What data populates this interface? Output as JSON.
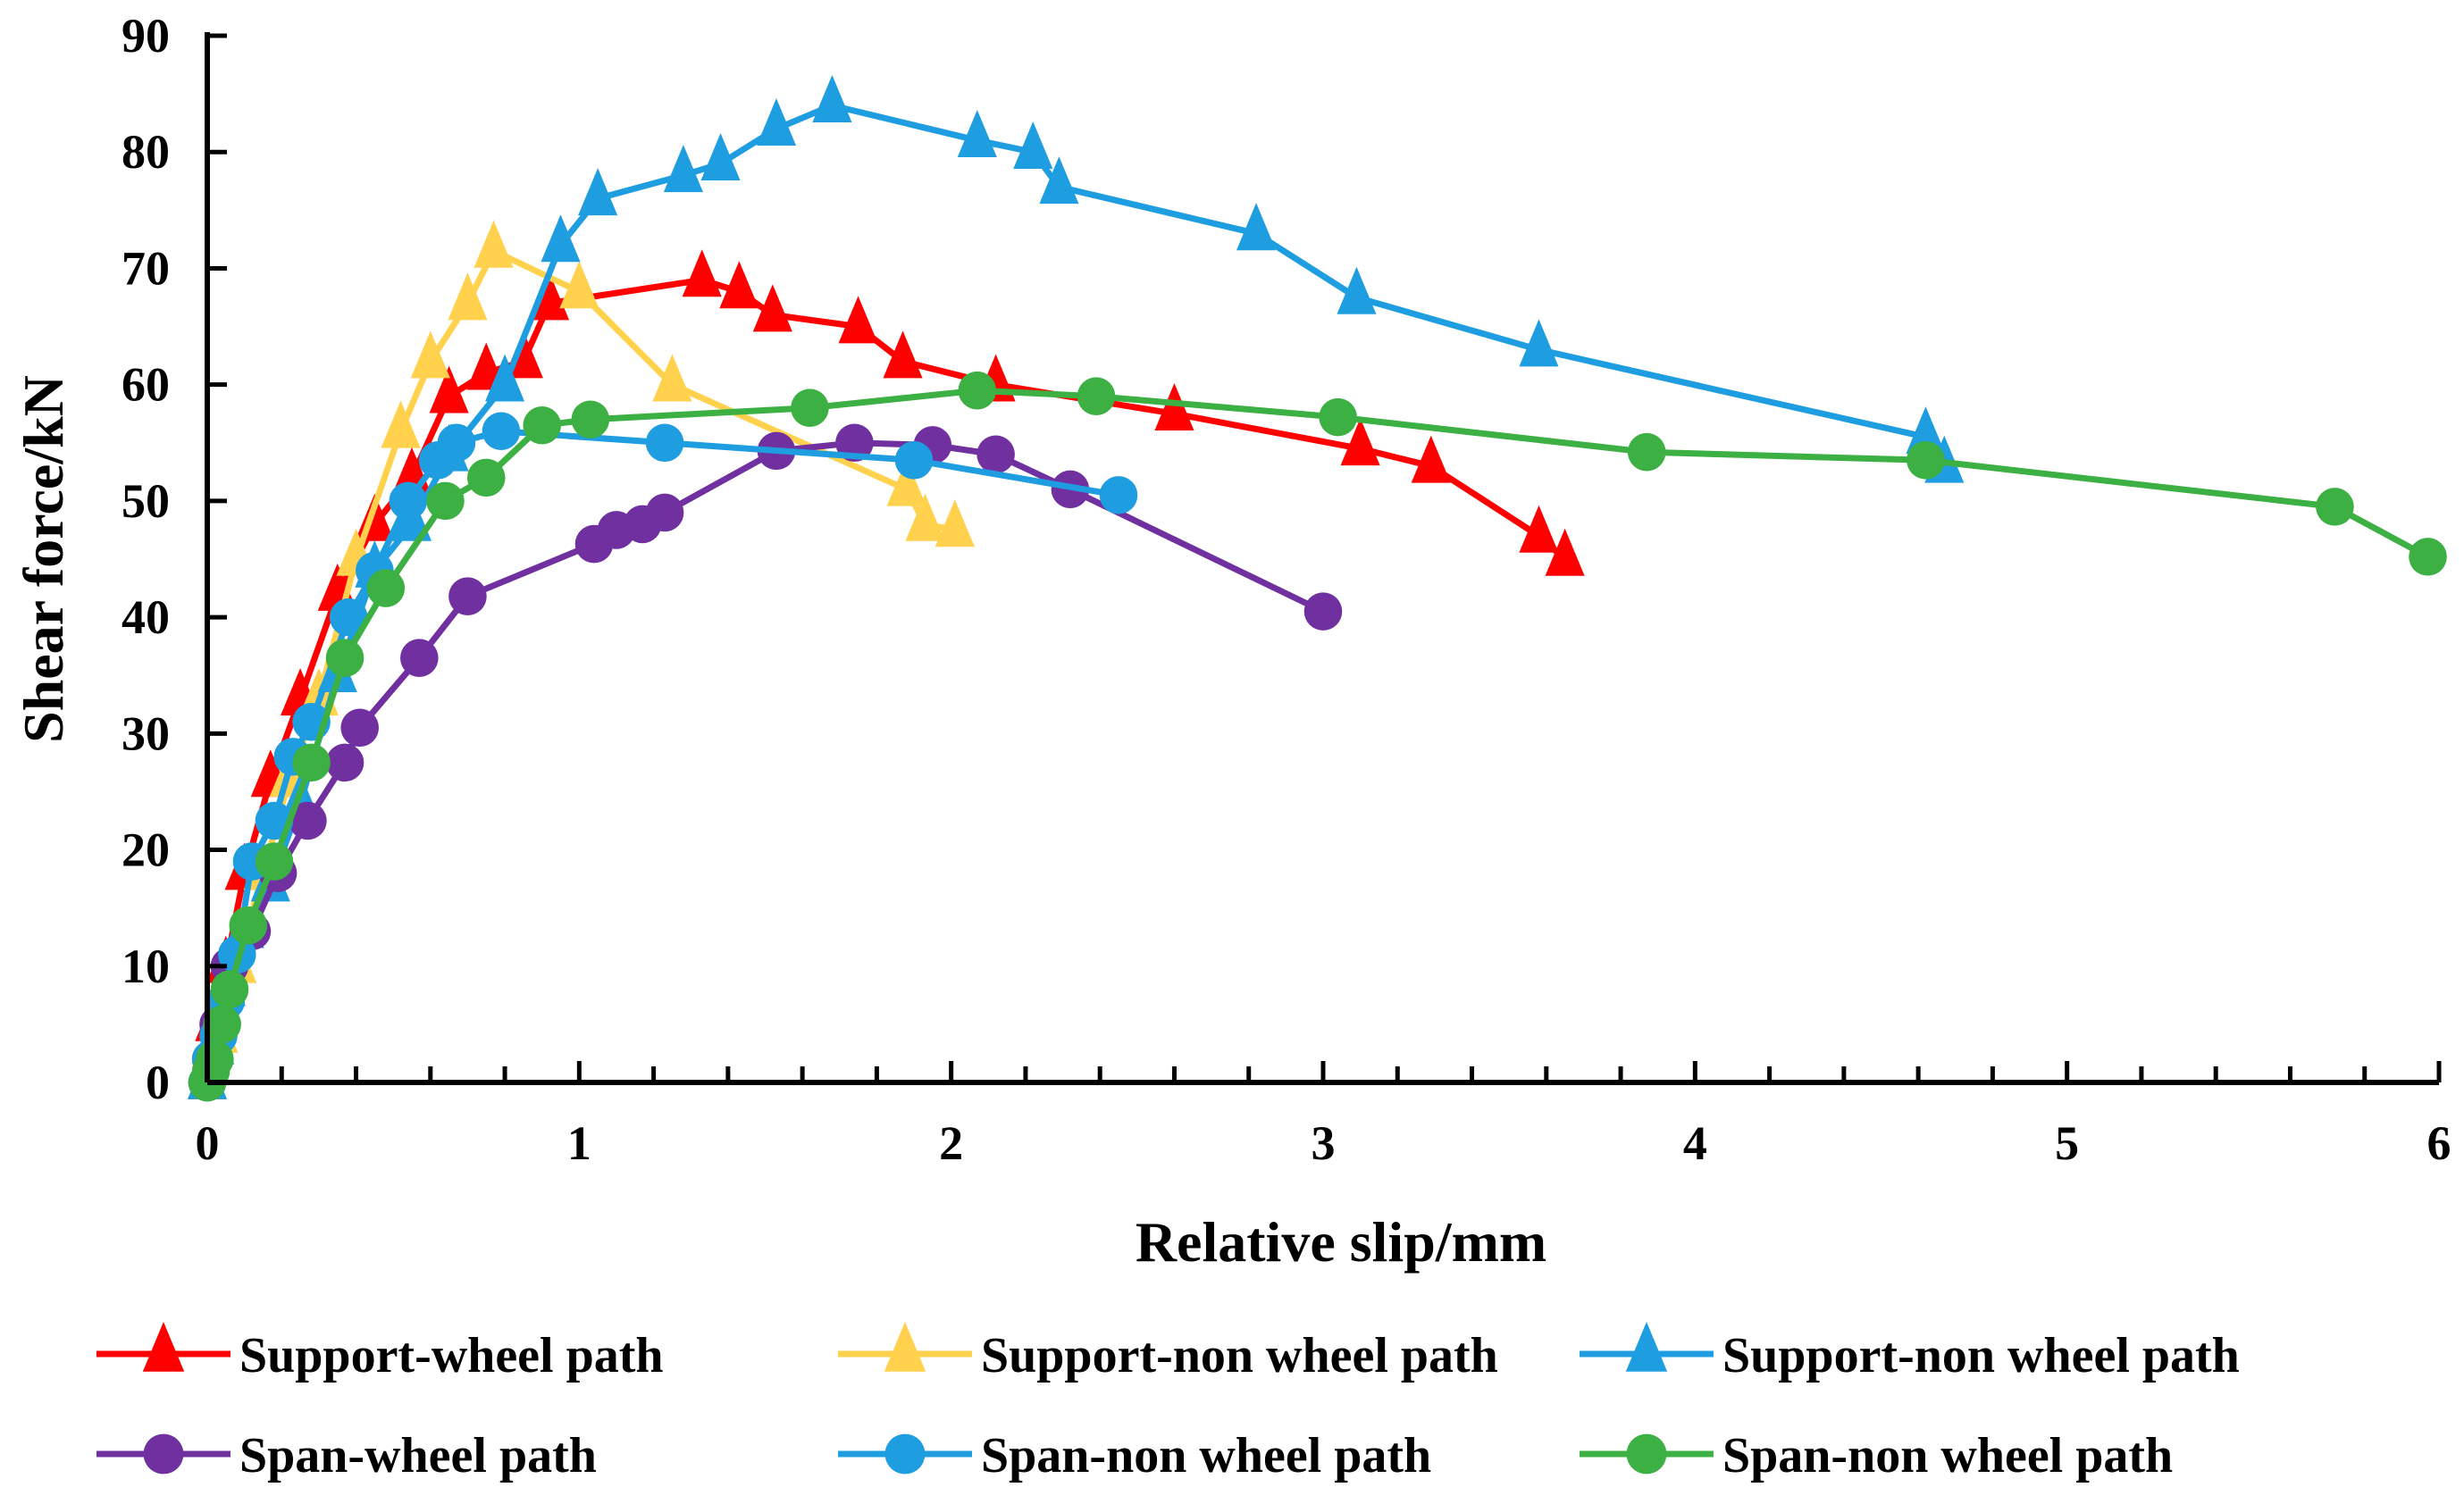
{
  "chart_data": {
    "type": "line",
    "title": "",
    "xlabel": "Relative slip/mm",
    "ylabel": "Shear force/kN",
    "xlim": [
      0,
      6
    ],
    "ylim": [
      0,
      90
    ],
    "xticks": [
      "0",
      "1",
      "2",
      "3",
      "4",
      "5",
      "6"
    ],
    "yticks": [
      "0",
      "10",
      "20",
      "30",
      "40",
      "50",
      "60",
      "70",
      "80",
      "90"
    ],
    "grid": false,
    "legend_position": "bottom",
    "series": [
      {
        "name": "Support-wheel path",
        "color": "#ff0000",
        "marker": "triangle",
        "x": [
          0,
          0.02,
          0.05,
          0.1,
          0.17,
          0.25,
          0.35,
          0.45,
          0.55,
          0.65,
          0.75,
          0.85,
          0.92,
          1.33,
          1.43,
          1.52,
          1.75,
          1.87,
          2.12,
          2.6,
          3.1,
          3.29,
          3.58,
          3.65
        ],
        "y": [
          0,
          5,
          10,
          18,
          26,
          33,
          42,
          48,
          52,
          59,
          61,
          62,
          67,
          69,
          68,
          66,
          65,
          62,
          60,
          57.5,
          54.5,
          53,
          47,
          45
        ]
      },
      {
        "name": "Support-non wheel path",
        "color": "#ffd14d",
        "marker": "triangle",
        "x": [
          0,
          0.03,
          0.08,
          0.15,
          0.22,
          0.3,
          0.4,
          0.52,
          0.6,
          0.7,
          0.77,
          1.0,
          1.25,
          1.88,
          1.93,
          2.01
        ],
        "y": [
          0,
          4,
          10,
          18,
          26,
          33,
          45,
          56,
          62,
          67,
          71.5,
          68,
          60,
          51,
          48,
          47.5
        ]
      },
      {
        "name": "Support-non wheel path",
        "color": "#1e9de0",
        "marker": "triangle",
        "x": [
          0,
          0.02,
          0.05,
          0.1,
          0.17,
          0.25,
          0.35,
          0.45,
          0.55,
          0.65,
          0.8,
          0.95,
          1.05,
          1.28,
          1.38,
          1.53,
          1.68,
          2.07,
          2.22,
          2.29,
          2.82,
          3.09,
          3.58,
          4.62,
          4.67
        ],
        "y": [
          0,
          3,
          8,
          13,
          17,
          24,
          35,
          44,
          48,
          54,
          60,
          72,
          76,
          78,
          79,
          82,
          84,
          81,
          80,
          77,
          73,
          67.5,
          63,
          55.5,
          53
        ]
      },
      {
        "name": "Span-wheel path",
        "color": "#7030a0",
        "marker": "circle",
        "x": [
          0,
          0.01,
          0.03,
          0.06,
          0.12,
          0.19,
          0.27,
          0.37,
          0.41,
          0.57,
          0.7,
          1.04,
          1.1,
          1.17,
          1.23,
          1.53,
          1.74,
          1.95,
          2.12,
          2.32,
          3.0
        ],
        "y": [
          0,
          2,
          5,
          10,
          13,
          18,
          22.5,
          27.5,
          30.5,
          36.5,
          41.8,
          46.3,
          47.5,
          48,
          49,
          54.3,
          55,
          54.8,
          54,
          51,
          40.5
        ]
      },
      {
        "name": "Span-non wheel path",
        "color": "#1e9de0",
        "marker": "circle",
        "x": [
          0,
          0.01,
          0.03,
          0.05,
          0.08,
          0.12,
          0.18,
          0.23,
          0.28,
          0.38,
          0.45,
          0.54,
          0.62,
          0.67,
          0.79,
          1.23,
          1.9,
          2.45
        ],
        "y": [
          0,
          2,
          4,
          7,
          11,
          19,
          22.5,
          28,
          31,
          40,
          44,
          50,
          53.5,
          55,
          56,
          55,
          53.5,
          50.5
        ]
      },
      {
        "name": "Span-non wheel path",
        "color": "#3cb043",
        "marker": "circle",
        "x": [
          0,
          0.01,
          0.02,
          0.04,
          0.06,
          0.11,
          0.18,
          0.28,
          0.37,
          0.48,
          0.64,
          0.75,
          0.9,
          1.03,
          1.62,
          2.07,
          2.39,
          3.04,
          3.87,
          4.62,
          5.72,
          5.97
        ],
        "y": [
          0,
          1,
          2,
          5,
          8,
          13.5,
          19,
          27.5,
          36.5,
          42.5,
          50,
          52,
          56.5,
          57,
          58,
          59.5,
          59,
          57.2,
          54.2,
          53.5,
          49.5,
          45.2
        ]
      }
    ]
  }
}
